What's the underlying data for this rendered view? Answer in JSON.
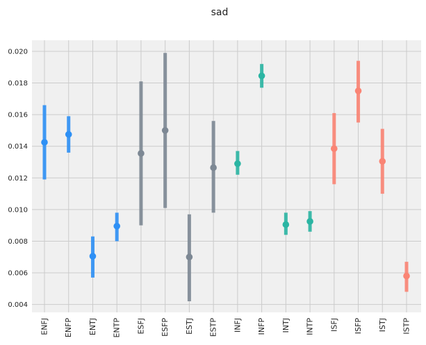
{
  "chart_data": {
    "type": "scatter",
    "title": "sad",
    "xlabel": "",
    "ylabel": "",
    "ylim": [
      0.0035,
      0.0207
    ],
    "yticks": [
      "0.004",
      "0.006",
      "0.008",
      "0.010",
      "0.012",
      "0.014",
      "0.016",
      "0.018",
      "0.020"
    ],
    "grid": true,
    "categories": [
      "ENFJ",
      "ENFP",
      "ENTJ",
      "ENTP",
      "ESFJ",
      "ESFP",
      "ESTJ",
      "ESTP",
      "INFJ",
      "INFP",
      "INTJ",
      "INTP",
      "ISFJ",
      "ISFP",
      "ISTJ",
      "ISTP"
    ],
    "means": [
      0.01425,
      0.01475,
      0.00705,
      0.00895,
      0.01355,
      0.015,
      0.007,
      0.01265,
      0.0129,
      0.01845,
      0.00905,
      0.00925,
      0.01385,
      0.0175,
      0.01305,
      0.0058
    ],
    "lower": [
      0.0119,
      0.0136,
      0.0057,
      0.008,
      0.009,
      0.0101,
      0.0042,
      0.0098,
      0.0122,
      0.0177,
      0.0084,
      0.0086,
      0.0116,
      0.0155,
      0.011,
      0.0048
    ],
    "upper": [
      0.0166,
      0.0159,
      0.0083,
      0.0098,
      0.0181,
      0.0199,
      0.0097,
      0.0156,
      0.0137,
      0.0192,
      0.0098,
      0.0099,
      0.0161,
      0.0194,
      0.0151,
      0.0067
    ],
    "colors": [
      "#2e90f5",
      "#2e90f5",
      "#2e90f5",
      "#2e90f5",
      "#7d8894",
      "#7d8894",
      "#7d8894",
      "#7d8894",
      "#2bb5a3",
      "#2bb5a3",
      "#2bb5a3",
      "#2bb5a3",
      "#fa8474",
      "#fa8474",
      "#fa8474",
      "#fa8474"
    ]
  }
}
